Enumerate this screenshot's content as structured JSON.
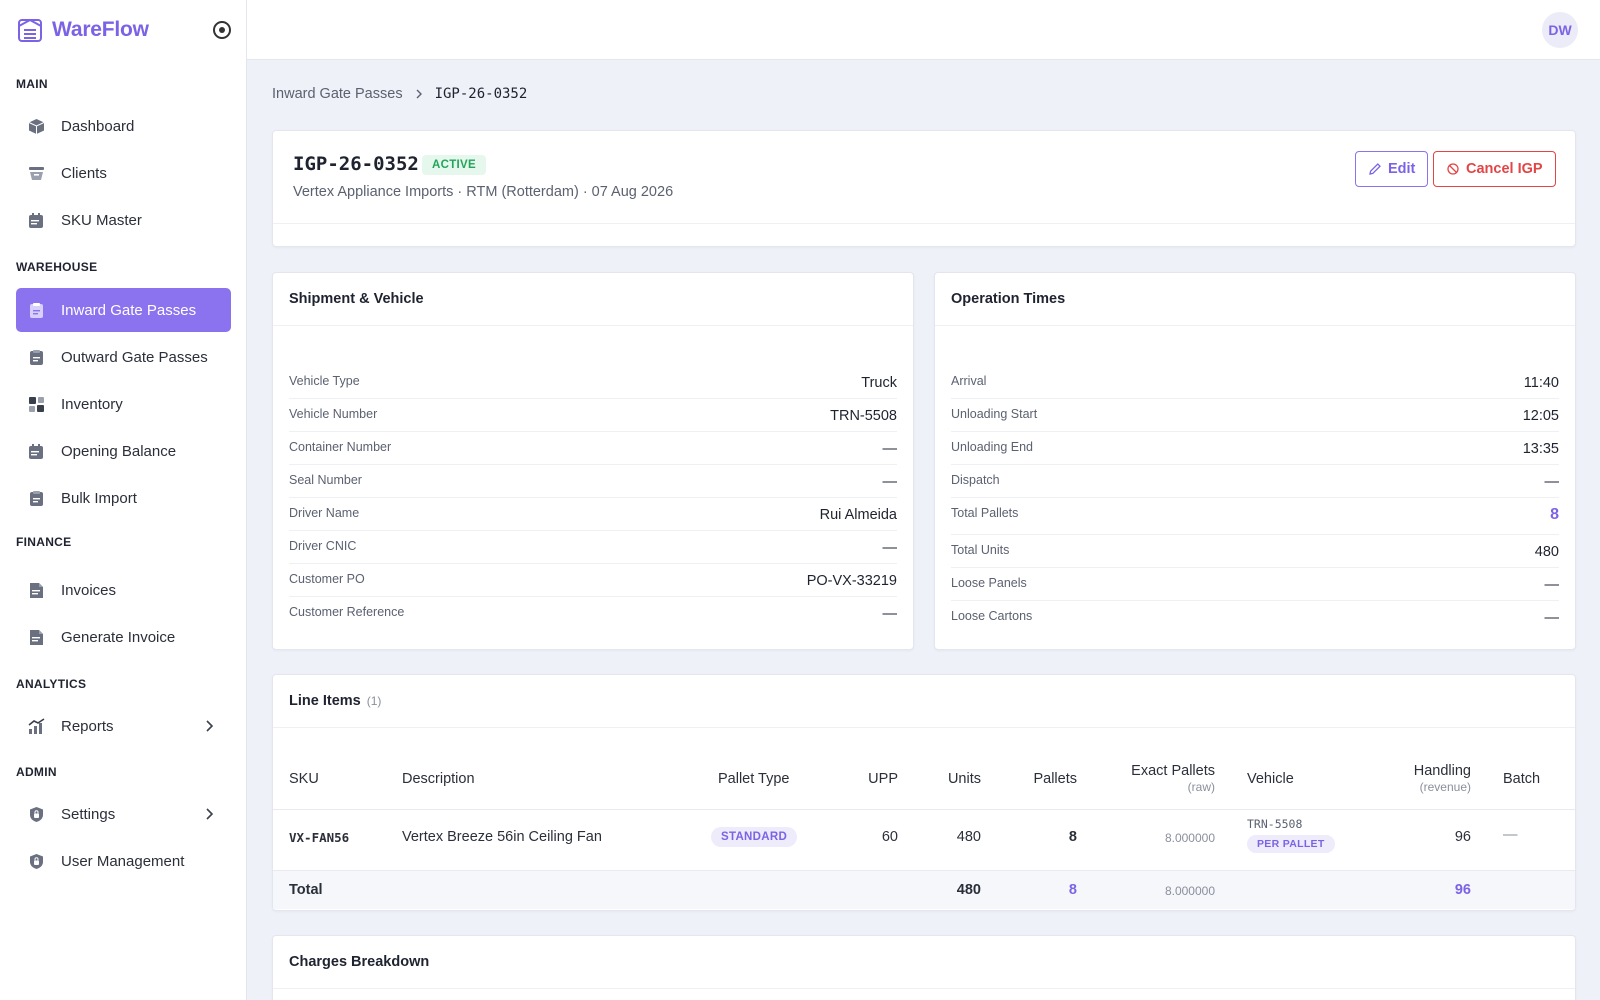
{
  "app": {
    "name": "WareFlow"
  },
  "user": {
    "initials": "DW"
  },
  "sidebar": {
    "sections": {
      "main": "MAIN",
      "warehouse": "WAREHOUSE",
      "finance": "FINANCE",
      "analytics": "ANALYTICS",
      "admin": "ADMIN"
    },
    "items": [
      {
        "label": "Dashboard",
        "icon": "box-icon"
      },
      {
        "label": "Clients",
        "icon": "tray-icon"
      },
      {
        "label": "SKU Master",
        "icon": "calendar-edit-icon"
      },
      {
        "label": "Inward Gate Passes",
        "icon": "clipboard-icon",
        "active": true
      },
      {
        "label": "Outward Gate Passes",
        "icon": "clipboard-icon"
      },
      {
        "label": "Inventory",
        "icon": "grid-icon"
      },
      {
        "label": "Opening Balance",
        "icon": "calendar-edit-icon"
      },
      {
        "label": "Bulk Import",
        "icon": "clipboard-icon"
      },
      {
        "label": "Invoices",
        "icon": "document-icon"
      },
      {
        "label": "Generate Invoice",
        "icon": "document-icon"
      },
      {
        "label": "Reports",
        "icon": "chart-icon",
        "has_submenu": true
      },
      {
        "label": "Settings",
        "icon": "lock-shield-icon",
        "has_submenu": true
      },
      {
        "label": "User Management",
        "icon": "lock-shield-icon"
      }
    ]
  },
  "breadcrumb": {
    "parent": "Inward Gate Passes",
    "current": "IGP-26-0352"
  },
  "header": {
    "title": "IGP-26-0352",
    "status": "ACTIVE",
    "subtitle": "Vertex Appliance Imports · RTM (Rotterdam) · 07 Aug 2026",
    "edit_label": "Edit",
    "cancel_label": "Cancel IGP"
  },
  "shipment": {
    "title": "Shipment & Vehicle",
    "rows": [
      {
        "label": "Vehicle Type",
        "value": "Truck"
      },
      {
        "label": "Vehicle Number",
        "value": "TRN-5508"
      },
      {
        "label": "Container Number",
        "value": "—"
      },
      {
        "label": "Seal Number",
        "value": "—"
      },
      {
        "label": "Driver Name",
        "value": "Rui Almeida"
      },
      {
        "label": "Driver CNIC",
        "value": "—"
      },
      {
        "label": "Customer PO",
        "value": "PO-VX-33219"
      },
      {
        "label": "Customer Reference",
        "value": "—"
      }
    ]
  },
  "operation": {
    "title": "Operation Times",
    "rows": [
      {
        "label": "Arrival",
        "value": "11:40"
      },
      {
        "label": "Unloading Start",
        "value": "12:05"
      },
      {
        "label": "Unloading End",
        "value": "13:35"
      },
      {
        "label": "Dispatch",
        "value": "—"
      },
      {
        "label": "Total Pallets",
        "value": "8"
      },
      {
        "label": "Total Units",
        "value": "480"
      },
      {
        "label": "Loose Panels",
        "value": "—"
      },
      {
        "label": "Loose Cartons",
        "value": "—"
      }
    ]
  },
  "line_items": {
    "title": "Line Items",
    "count": "(1)",
    "columns": {
      "sku": "SKU",
      "description": "Description",
      "pallet_type": "Pallet Type",
      "upp": "UPP",
      "units": "Units",
      "pallets": "Pallets",
      "exact_pallets": "Exact Pallets",
      "exact_pallets_sub": "(raw)",
      "vehicle": "Vehicle",
      "handling": "Handling",
      "handling_sub": "(revenue)",
      "batch": "Batch"
    },
    "rows": [
      {
        "sku": "VX-FAN56",
        "description": "Vertex Breeze 56in Ceiling Fan",
        "pallet_type": "STANDARD",
        "upp": "60",
        "units": "480",
        "pallets": "8",
        "exact_pallets": "8.000000",
        "vehicle": "TRN-5508",
        "vehicle_tag": "PER PALLET",
        "handling": "96",
        "batch": "—"
      }
    ],
    "total": {
      "label": "Total",
      "units": "480",
      "pallets": "8",
      "exact_pallets": "8.000000",
      "handling": "96"
    }
  },
  "charges": {
    "title": "Charges Breakdown"
  },
  "colors": {
    "accent": "#7c63e6",
    "active_nav": "#8b72ee",
    "success": "#22a559",
    "danger": "#e24545"
  }
}
